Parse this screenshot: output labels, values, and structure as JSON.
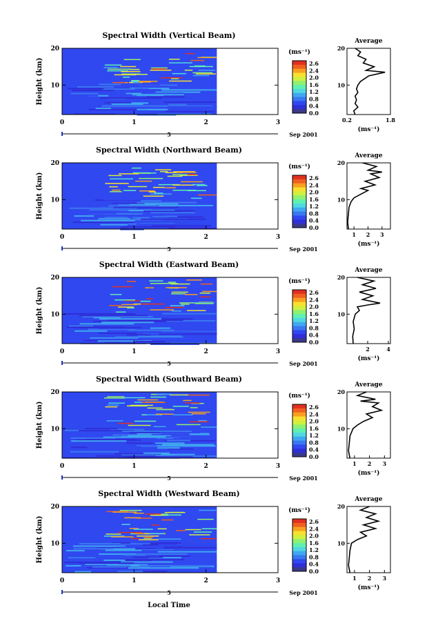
{
  "figure": {
    "xlabel": "Local Time",
    "date_label": "Sep 2001",
    "date_day": "5",
    "x_ticks": [
      "0",
      "1",
      "2",
      "3"
    ],
    "height_label": "Height (km)",
    "height_ticks": [
      "20",
      "10"
    ],
    "colorbar_unit": "(ms⁻¹)",
    "colorbar_ticks": [
      "2.6",
      "2.4",
      "2.0",
      "1.6",
      "1.2",
      "0.8",
      "0.4",
      "0.0"
    ],
    "average_title": "Average",
    "average_unit": "(ms⁻¹)",
    "colors": {
      "scale": [
        "#3a3a8a",
        "#2f2fd8",
        "#3048f0",
        "#3a78f0",
        "#40a8f0",
        "#50d8e0",
        "#60f0b0",
        "#90f070",
        "#d0f040",
        "#f8e030",
        "#f8a020",
        "#f06020",
        "#e03020"
      ]
    }
  },
  "chart_data": [
    {
      "type": "heatmap",
      "title": "Spectral Width (Vertical Beam)",
      "xlim": [
        0,
        3
      ],
      "ylim": [
        2,
        20
      ],
      "colorbar_range": [
        0.0,
        2.8
      ],
      "data_end_hour": 2.15,
      "average": {
        "xticks": [
          "0.2",
          "1.8"
        ],
        "xlim": [
          0.2,
          1.8
        ],
        "profile": [
          [
            0.5,
            2
          ],
          [
            0.45,
            3
          ],
          [
            0.6,
            4
          ],
          [
            0.5,
            5
          ],
          [
            0.55,
            6
          ],
          [
            0.5,
            7
          ],
          [
            0.6,
            8
          ],
          [
            0.55,
            9
          ],
          [
            0.6,
            10
          ],
          [
            0.7,
            11
          ],
          [
            0.9,
            12
          ],
          [
            1.0,
            12.5
          ],
          [
            1.6,
            13.5
          ],
          [
            0.9,
            14
          ],
          [
            1.2,
            15
          ],
          [
            0.8,
            16
          ],
          [
            0.9,
            17
          ],
          [
            0.6,
            18
          ],
          [
            0.7,
            19
          ],
          [
            0.5,
            20
          ]
        ]
      }
    },
    {
      "type": "heatmap",
      "title": "Spectral Width (Northward Beam)",
      "xlim": [
        0,
        3
      ],
      "ylim": [
        2,
        20
      ],
      "colorbar_range": [
        0.0,
        2.8
      ],
      "data_end_hour": 2.15,
      "average": {
        "xticks": [
          "1",
          "2",
          "3"
        ],
        "xlim": [
          0.5,
          3.6
        ],
        "profile": [
          [
            0.6,
            2
          ],
          [
            0.55,
            4
          ],
          [
            0.6,
            6
          ],
          [
            0.65,
            8
          ],
          [
            0.8,
            9.5
          ],
          [
            1.0,
            10.5
          ],
          [
            1.5,
            11.5
          ],
          [
            2.0,
            12.5
          ],
          [
            1.5,
            13
          ],
          [
            2.5,
            14
          ],
          [
            1.8,
            15
          ],
          [
            2.8,
            16
          ],
          [
            2.2,
            17
          ],
          [
            3.0,
            17.5
          ],
          [
            2.0,
            18
          ],
          [
            2.6,
            19
          ],
          [
            1.6,
            20
          ]
        ]
      }
    },
    {
      "type": "heatmap",
      "title": "Spectral Width (Eastward Beam)",
      "xlim": [
        0,
        3
      ],
      "ylim": [
        2,
        20
      ],
      "colorbar_range": [
        0.0,
        2.8
      ],
      "data_end_hour": 2.15,
      "average": {
        "xticks": [
          "2",
          "4"
        ],
        "xlim": [
          0,
          4.2
        ],
        "profile": [
          [
            0.6,
            2
          ],
          [
            0.55,
            4
          ],
          [
            0.7,
            6
          ],
          [
            0.6,
            8
          ],
          [
            0.8,
            10
          ],
          [
            1.2,
            11
          ],
          [
            1.0,
            12
          ],
          [
            2.0,
            12.5
          ],
          [
            3.2,
            13
          ],
          [
            1.5,
            14
          ],
          [
            2.5,
            15
          ],
          [
            1.2,
            16
          ],
          [
            2.8,
            17
          ],
          [
            1.5,
            18
          ],
          [
            2.6,
            19
          ],
          [
            1.0,
            20
          ]
        ]
      }
    },
    {
      "type": "heatmap",
      "title": "Spectral Width (Southward Beam)",
      "xlim": [
        0,
        3
      ],
      "ylim": [
        2,
        20
      ],
      "colorbar_range": [
        0.0,
        2.8
      ],
      "data_end_hour": 2.15,
      "average": {
        "xticks": [
          "1",
          "2",
          "3"
        ],
        "xlim": [
          0.5,
          3.4
        ],
        "profile": [
          [
            0.7,
            2
          ],
          [
            0.6,
            4
          ],
          [
            0.65,
            6
          ],
          [
            0.7,
            8
          ],
          [
            0.9,
            10
          ],
          [
            1.2,
            11
          ],
          [
            1.6,
            12
          ],
          [
            2.2,
            13
          ],
          [
            1.8,
            14
          ],
          [
            2.8,
            15
          ],
          [
            2.2,
            16
          ],
          [
            2.6,
            17
          ],
          [
            1.4,
            17.5
          ],
          [
            2.4,
            18
          ],
          [
            1.2,
            19
          ],
          [
            1.8,
            20
          ]
        ]
      }
    },
    {
      "type": "heatmap",
      "title": "Spectral Width (Westward Beam)",
      "xlim": [
        0,
        3
      ],
      "ylim": [
        2,
        20
      ],
      "colorbar_range": [
        0.0,
        2.8
      ],
      "data_end_hour": 2.15,
      "average": {
        "xticks": [
          "1",
          "2",
          "3"
        ],
        "xlim": [
          0.5,
          3.4
        ],
        "profile": [
          [
            0.7,
            2
          ],
          [
            0.6,
            4
          ],
          [
            0.65,
            6
          ],
          [
            0.7,
            8
          ],
          [
            0.8,
            10
          ],
          [
            1.2,
            11
          ],
          [
            1.8,
            12
          ],
          [
            1.4,
            13
          ],
          [
            2.4,
            14
          ],
          [
            1.6,
            15
          ],
          [
            2.6,
            16
          ],
          [
            1.8,
            17
          ],
          [
            2.4,
            18
          ],
          [
            1.4,
            19
          ],
          [
            2.0,
            20
          ]
        ]
      }
    }
  ]
}
